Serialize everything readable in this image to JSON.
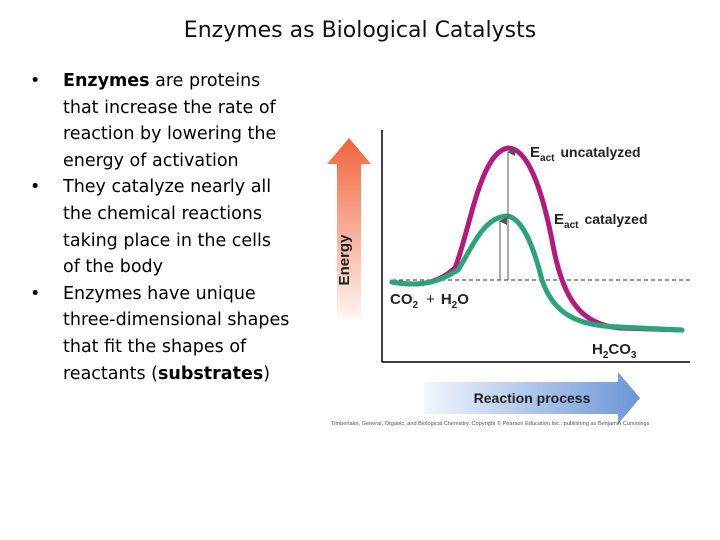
{
  "slide": {
    "title": "Enzymes as Biological Catalysts",
    "bullets": [
      {
        "bold": "Enzymes",
        "text": " are proteins that increase the rate of reaction by lowering the energy of activation"
      },
      {
        "text": "They catalyze nearly all the chemical reactions taking place in the cells of the body"
      },
      {
        "text": "Enzymes have unique three-dimensional shapes that fit the shapes of reactants (",
        "bold": "substrates",
        "tail": ")"
      }
    ]
  },
  "figure": {
    "energy_label": "Energy",
    "process_label": "Reaction process",
    "reactants": {
      "a": "CO",
      "a_sub": "2",
      "plus": "+",
      "b_pre": "H",
      "b_sub": "2",
      "b_post": "O"
    },
    "product": {
      "pre": "H",
      "sub1": "2",
      "mid": "CO",
      "sub2": "3"
    },
    "uncatalyzed": {
      "e": "E",
      "sub": "act",
      "label": "uncatalyzed"
    },
    "catalyzed": {
      "e": "E",
      "sub": "act",
      "label": "catalyzed"
    },
    "credit": "Timberlake, General, Organic, and Biological Chemistry. Copyright © Pearson Education Inc., publishing as Benjamin Cummings",
    "colors": {
      "uncatalyzed_curve": "#b5197f",
      "catalyzed_curve": "#2aa57a",
      "energy_arrow": "#f0643c",
      "process_arrow": "#6b95d6"
    }
  }
}
